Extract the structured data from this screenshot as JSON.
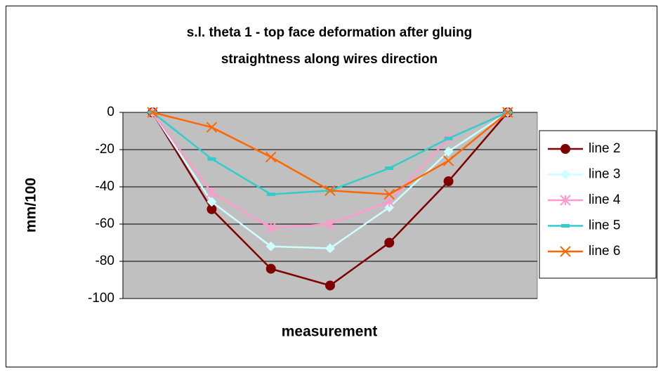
{
  "chart_data": {
    "type": "line",
    "title_lines": [
      "s.l. theta 1 - top face deformation after gluing",
      "straightness along wires direction"
    ],
    "x_label": "measurement",
    "y_label": "mm/100",
    "categories": [
      null,
      null,
      null,
      null,
      null,
      null,
      null
    ],
    "series": [
      {
        "name": "line 2",
        "color": "#800000",
        "marker": "circle",
        "values": [
          0,
          -52,
          -84,
          -93,
          -70,
          -37,
          0
        ]
      },
      {
        "name": "line 3",
        "color": "#ccffff",
        "marker": "diamond",
        "values": [
          0,
          -48,
          -72,
          -73,
          -51,
          -21,
          0
        ]
      },
      {
        "name": "line 4",
        "color": "#ff99cc",
        "marker": "asterisk",
        "values": [
          0,
          -43,
          -62,
          -60,
          -48,
          -14,
          0
        ]
      },
      {
        "name": "line 5",
        "color": "#33cccc",
        "marker": "dash",
        "values": [
          0,
          -25,
          -44,
          -42,
          -30,
          -14,
          0
        ]
      },
      {
        "name": "line 6",
        "color": "#ff6600",
        "marker": "x",
        "values": [
          0,
          -8,
          -24,
          -42,
          -44,
          -26,
          0
        ]
      }
    ],
    "ylim": [
      -100,
      0
    ],
    "yticks": [
      0,
      -20,
      -40,
      -60,
      -80,
      -100
    ],
    "grid": true,
    "legend": "right",
    "plot_background": "#c0c0c0"
  }
}
